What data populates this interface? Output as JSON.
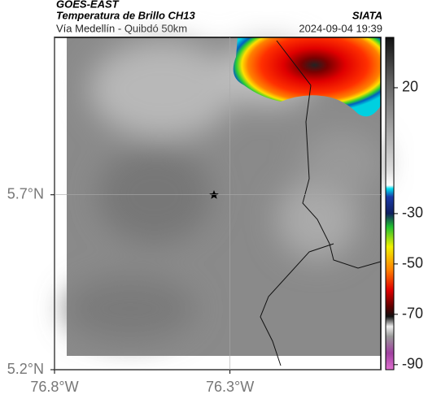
{
  "header": {
    "title": "GOES-EAST",
    "subtitle": "Temperatura de Brillo CH13",
    "source": "SIATA",
    "route": "Vía Medellín - Quibdó 50km",
    "datetime": "2024-09-04 19:39"
  },
  "map": {
    "xlim": [
      -76.8,
      -75.87
    ],
    "ylim": [
      5.2,
      6.15
    ],
    "xticks": [
      {
        "value": -76.8,
        "label": "76.8°W"
      },
      {
        "value": -76.3,
        "label": "76.3°W"
      }
    ],
    "yticks": [
      {
        "value": 5.7,
        "label": "5.7°N"
      },
      {
        "value": 5.2,
        "label": "5.2°N"
      }
    ],
    "grid": true
  },
  "colorbar": {
    "lim": [
      -92,
      40
    ],
    "ticks": [
      20,
      -30,
      -50,
      -70,
      -90
    ]
  }
}
